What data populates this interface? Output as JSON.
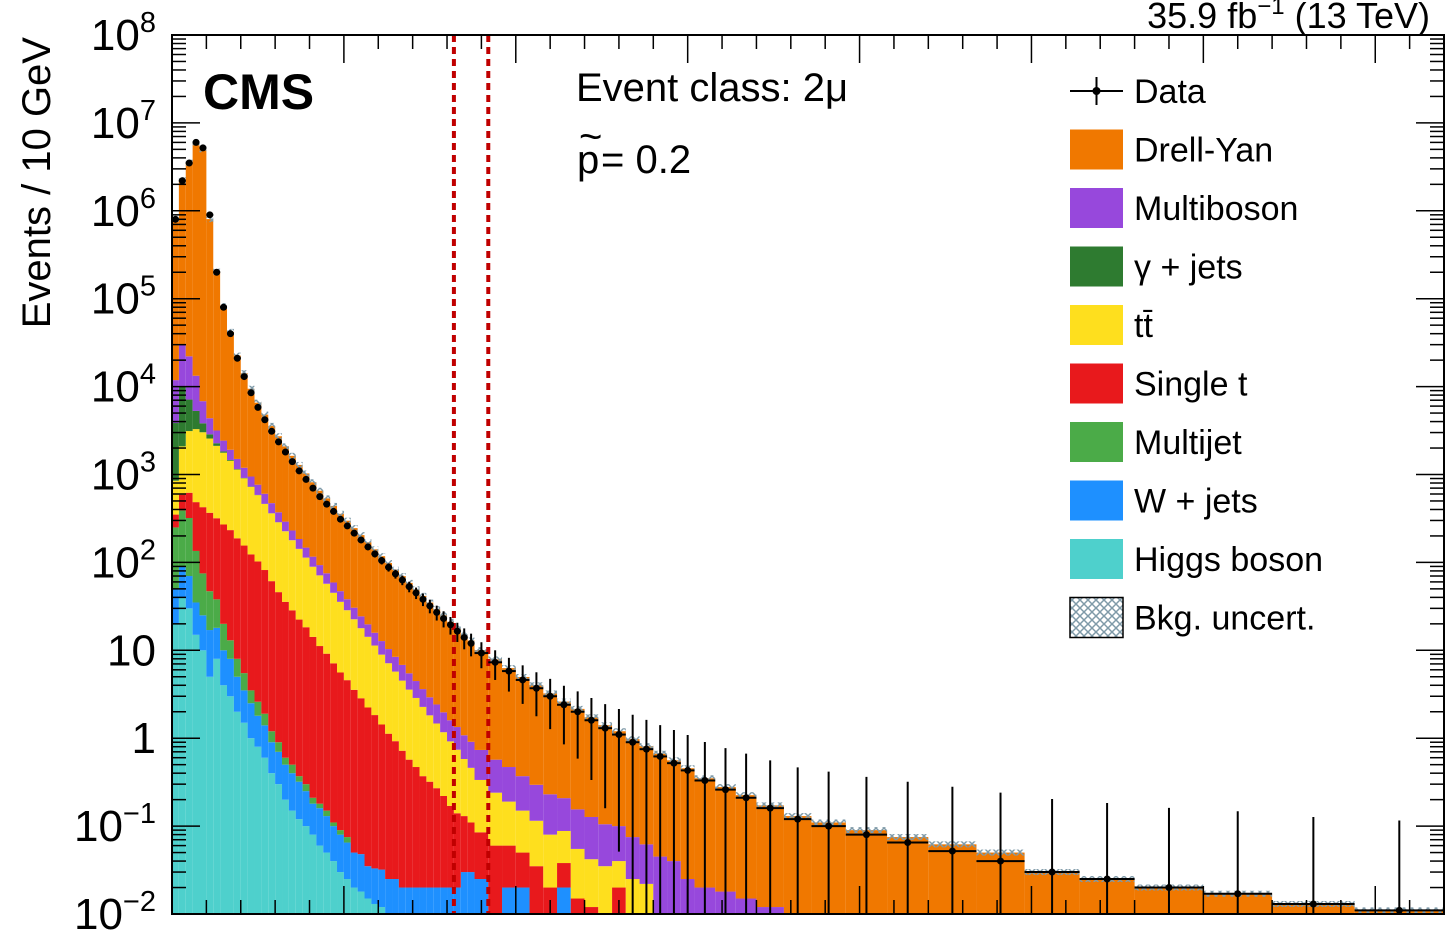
{
  "chart_data": {
    "type": "bar",
    "stacked": true,
    "log_scale_y": true,
    "experiment": "CMS",
    "lumi_text": "35.9 fb",
    "lumi_exp": "−1",
    "lumi_energy": " (13 TeV)",
    "event_class_label": "Event class: 2",
    "event_class_symbol": "μ",
    "ptilde_symbol": "p",
    "ptilde_value": " = 0.2",
    "ylabel": "Events / 10 GeV",
    "ylim": [
      0.01,
      100000000
    ],
    "y_ticks": [
      {
        "value": 100000000,
        "base": "10",
        "exp": "8"
      },
      {
        "value": 10000000,
        "base": "10",
        "exp": "7"
      },
      {
        "value": 1000000,
        "base": "10",
        "exp": "6"
      },
      {
        "value": 100000,
        "base": "10",
        "exp": "5"
      },
      {
        "value": 10000,
        "base": "10",
        "exp": "4"
      },
      {
        "value": 1000,
        "base": "10",
        "exp": "3"
      },
      {
        "value": 100,
        "base": "10",
        "exp": "2"
      },
      {
        "value": 10,
        "base": "10",
        "exp": ""
      },
      {
        "value": 1,
        "base": "1",
        "exp": ""
      },
      {
        "value": 0.1,
        "base": "10",
        "exp": "−1"
      },
      {
        "value": 0.01,
        "base": "10",
        "exp": "−2"
      }
    ],
    "x_bin_edges": [
      0,
      1,
      2,
      3,
      4,
      5,
      6,
      7,
      8,
      9,
      10,
      11,
      12,
      13,
      14,
      15,
      16,
      17,
      18,
      19,
      20,
      21,
      22,
      23,
      24,
      25,
      26,
      27,
      28,
      29,
      30,
      31,
      32,
      33,
      34,
      35,
      36,
      37,
      38,
      39,
      40,
      41,
      42,
      43,
      44,
      46,
      48,
      50,
      52,
      54,
      56,
      58,
      60,
      62,
      64,
      66,
      68,
      70,
      72,
      74,
      76,
      79,
      82,
      85,
      89,
      93,
      98,
      104,
      110,
      117,
      124,
      132,
      140,
      150,
      160,
      172,
      185
    ],
    "region_lines": [
      41,
      46
    ],
    "series": [
      {
        "name": "Higgs boson",
        "color": "#4ed0cc",
        "values": [
          20,
          40,
          30,
          15,
          10,
          5,
          8,
          4,
          3,
          2,
          1.5,
          1,
          0.8,
          0.6,
          0.4,
          0.3,
          0.2,
          0.15,
          0.12,
          0.1,
          0.08,
          0.06,
          0.05,
          0.04,
          0.03,
          0.025,
          0.02,
          0.018,
          0.015,
          0.013,
          0.012,
          0.01,
          0.01,
          0.01,
          0.01,
          0.01,
          0.01,
          0.01,
          0.01,
          0.01,
          0.01,
          0.01,
          0.01,
          0.01,
          0.01,
          0,
          0,
          0,
          0,
          0,
          0,
          0,
          0,
          0,
          0,
          0,
          0,
          0,
          0,
          0,
          0,
          0,
          0,
          0,
          0,
          0,
          0,
          0,
          0,
          0,
          0,
          0,
          0,
          0,
          0,
          0
        ]
      },
      {
        "name": "W + jets",
        "color": "#1e90ff",
        "values": [
          30,
          50,
          40,
          20,
          15,
          12,
          10,
          6,
          5,
          3,
          2,
          1.5,
          1,
          0.8,
          0.5,
          0.4,
          0.3,
          0.25,
          0.2,
          0.15,
          0.1,
          0.1,
          0.08,
          0.06,
          0.05,
          0.04,
          0.03,
          0.03,
          0.02,
          0.02,
          0.02,
          0.015,
          0.015,
          0.01,
          0.01,
          0.01,
          0.01,
          0.01,
          0.01,
          0.01,
          0.01,
          0.01,
          0.02,
          0.02,
          0.015,
          0.01,
          0.02,
          0.02,
          0.01,
          0,
          0.02,
          0,
          0,
          0,
          0.01,
          0,
          0,
          0,
          0.01,
          0,
          0,
          0,
          0,
          0,
          0,
          0,
          0,
          0,
          0,
          0,
          0,
          0,
          0,
          0,
          0,
          0
        ]
      },
      {
        "name": "Multijet",
        "color": "#4bab48",
        "values": [
          200,
          300,
          250,
          100,
          50,
          30,
          20,
          10,
          5,
          3,
          2,
          1,
          0.8,
          0.5,
          0.3,
          0.2,
          0.1,
          0.1,
          0.05,
          0.05,
          0.03,
          0.02,
          0.02,
          0.01,
          0.01,
          0.01,
          0,
          0,
          0,
          0,
          0,
          0,
          0,
          0,
          0,
          0,
          0,
          0,
          0,
          0,
          0,
          0,
          0,
          0,
          0,
          0,
          0,
          0,
          0,
          0,
          0,
          0,
          0,
          0,
          0,
          0,
          0,
          0,
          0,
          0,
          0,
          0,
          0,
          0,
          0,
          0,
          0,
          0,
          0,
          0,
          0,
          0,
          0,
          0,
          0,
          0
        ]
      },
      {
        "name": "Single t",
        "color": "#e8191c",
        "values": [
          100,
          200,
          300,
          350,
          350,
          320,
          280,
          250,
          220,
          180,
          150,
          120,
          100,
          80,
          60,
          45,
          35,
          28,
          22,
          18,
          14,
          11,
          9,
          7,
          5.5,
          4.5,
          3.5,
          2.8,
          2.2,
          1.8,
          1.4,
          1.1,
          0.9,
          0.7,
          0.55,
          0.45,
          0.35,
          0.3,
          0.25,
          0.2,
          0.15,
          0.12,
          0.1,
          0.08,
          0.06,
          0.05,
          0.04,
          0.03,
          0.025,
          0.02,
          0.018,
          0.015,
          0.012,
          0.01,
          0.01,
          0.01,
          0.01,
          0,
          0,
          0,
          0,
          0,
          0,
          0,
          0,
          0,
          0,
          0,
          0,
          0,
          0,
          0,
          0,
          0,
          0,
          0
        ]
      },
      {
        "name": "tt̄",
        "color": "#fedf1e",
        "values": [
          500,
          1500,
          2500,
          2800,
          2600,
          2200,
          1800,
          1500,
          1200,
          950,
          750,
          600,
          480,
          380,
          300,
          240,
          190,
          150,
          120,
          95,
          75,
          60,
          48,
          38,
          30,
          24,
          19,
          15,
          12,
          9.5,
          7.5,
          6,
          4.8,
          3.8,
          3,
          2.4,
          1.9,
          1.5,
          1.2,
          0.95,
          0.75,
          0.6,
          0.45,
          0.35,
          0.25,
          0.18,
          0.13,
          0.1,
          0.08,
          0.06,
          0.05,
          0.04,
          0.03,
          0.025,
          0.02,
          0.015,
          0.012,
          0.01,
          0,
          0,
          0,
          0,
          0,
          0,
          0,
          0,
          0,
          0,
          0,
          0,
          0,
          0,
          0,
          0,
          0,
          0
        ]
      },
      {
        "name": "γ + jets",
        "color": "#2e7b30",
        "values": [
          3000,
          8000,
          4000,
          2000,
          800,
          300,
          150,
          60,
          30,
          15,
          8,
          5,
          3,
          2,
          1,
          0.8,
          0.5,
          0.3,
          0.2,
          0.1,
          0.05,
          0.03,
          0.02,
          0,
          0,
          0,
          0,
          0,
          0,
          0,
          0,
          0,
          0,
          0,
          0,
          0,
          0,
          0,
          0,
          0,
          0,
          0,
          0,
          0,
          0,
          0,
          0,
          0,
          0,
          0,
          0,
          0,
          0,
          0,
          0,
          0,
          0,
          0,
          0,
          0,
          0,
          0,
          0,
          0,
          0,
          0,
          0,
          0,
          0,
          0,
          0,
          0,
          0,
          0,
          0,
          0
        ]
      },
      {
        "name": "Multiboson",
        "color": "#9748dc",
        "values": [
          8000,
          20000,
          15000,
          8000,
          3000,
          1500,
          900,
          600,
          450,
          350,
          280,
          220,
          180,
          140,
          110,
          85,
          65,
          52,
          42,
          34,
          27,
          22,
          18,
          14,
          11.5,
          9.5,
          8,
          6.5,
          5.5,
          4.5,
          3.8,
          3.2,
          2.7,
          2.3,
          1.9,
          1.6,
          1.35,
          1.1,
          0.95,
          0.8,
          0.68,
          0.6,
          0.5,
          0.45,
          0.4,
          0.33,
          0.28,
          0.22,
          0.18,
          0.15,
          0.12,
          0.1,
          0.085,
          0.07,
          0.06,
          0.05,
          0.04,
          0.035,
          0.03,
          0.025,
          0.02,
          0.018,
          0.015,
          0.012,
          0.01,
          0.01,
          0.01,
          0.01,
          0.01,
          0.01,
          0,
          0,
          0,
          0,
          0
        ]
      },
      {
        "name": "Drell-Yan",
        "color": "#f07800",
        "values": [
          800000,
          2200000,
          3500000,
          6000000,
          5000000,
          800000,
          200000,
          80000,
          40000,
          21000,
          13000,
          8500,
          5800,
          4200,
          3100,
          2350,
          1800,
          1400,
          1100,
          880,
          700,
          560,
          460,
          380,
          310,
          260,
          215,
          180,
          150,
          125,
          105,
          88,
          74,
          63,
          53,
          45,
          38,
          32,
          27,
          23,
          19.5,
          16.5,
          14,
          12,
          9.3,
          7.3,
          5.8,
          4.6,
          3.7,
          3,
          2.4,
          2,
          1.6,
          1.3,
          1.1,
          0.9,
          0.75,
          0.62,
          0.52,
          0.43,
          0.33,
          0.26,
          0.21,
          0.16,
          0.12,
          0.1,
          0.08,
          0.065,
          0.052,
          0.04,
          0.03,
          0.025,
          0.02,
          0.017,
          0.013,
          0.011
        ]
      }
    ],
    "data_points": [
      800000,
      2200000,
      3500000,
      6000000,
      5200000,
      900000,
      200000,
      80000,
      40000,
      21000,
      13000,
      8500,
      5800,
      4200,
      3100,
      2350,
      1800,
      1400,
      1100,
      880,
      700,
      560,
      460,
      380,
      310,
      260,
      215,
      180,
      150,
      125,
      105,
      88,
      74,
      63,
      53,
      45,
      38,
      32,
      27,
      23,
      19.5,
      16.5,
      14,
      12,
      9.3,
      7.3,
      5.8,
      4.6,
      3.7,
      3,
      2.4,
      2,
      1.6,
      1.3,
      1.1,
      0.9,
      0.75,
      0.62,
      0.52,
      0.43,
      0.33,
      0.26,
      0.21,
      0.16,
      0.12,
      0.1,
      0.08,
      0.065,
      0.052,
      0.04,
      0.03,
      0.025,
      0.02,
      0.017,
      0.013,
      0.011
    ],
    "legend": {
      "placement": "top-right",
      "entries": [
        {
          "label": "Data",
          "kind": "marker"
        },
        {
          "label": "Drell-Yan",
          "kind": "fill",
          "color": "#f07800"
        },
        {
          "label": "Multiboson",
          "kind": "fill",
          "color": "#9748dc"
        },
        {
          "label": "γ + jets",
          "kind": "fill",
          "color": "#2e7b30"
        },
        {
          "label": "tt̄",
          "kind": "fill",
          "color": "#fedf1e"
        },
        {
          "label": "Single t",
          "kind": "fill",
          "color": "#e8191c"
        },
        {
          "label": "Multijet",
          "kind": "fill",
          "color": "#4bab48"
        },
        {
          "label": "W + jets",
          "kind": "fill",
          "color": "#1e90ff"
        },
        {
          "label": "Higgs boson",
          "kind": "fill",
          "color": "#4ed0cc"
        },
        {
          "label": "Bkg. uncert.",
          "kind": "hatch"
        }
      ]
    }
  }
}
